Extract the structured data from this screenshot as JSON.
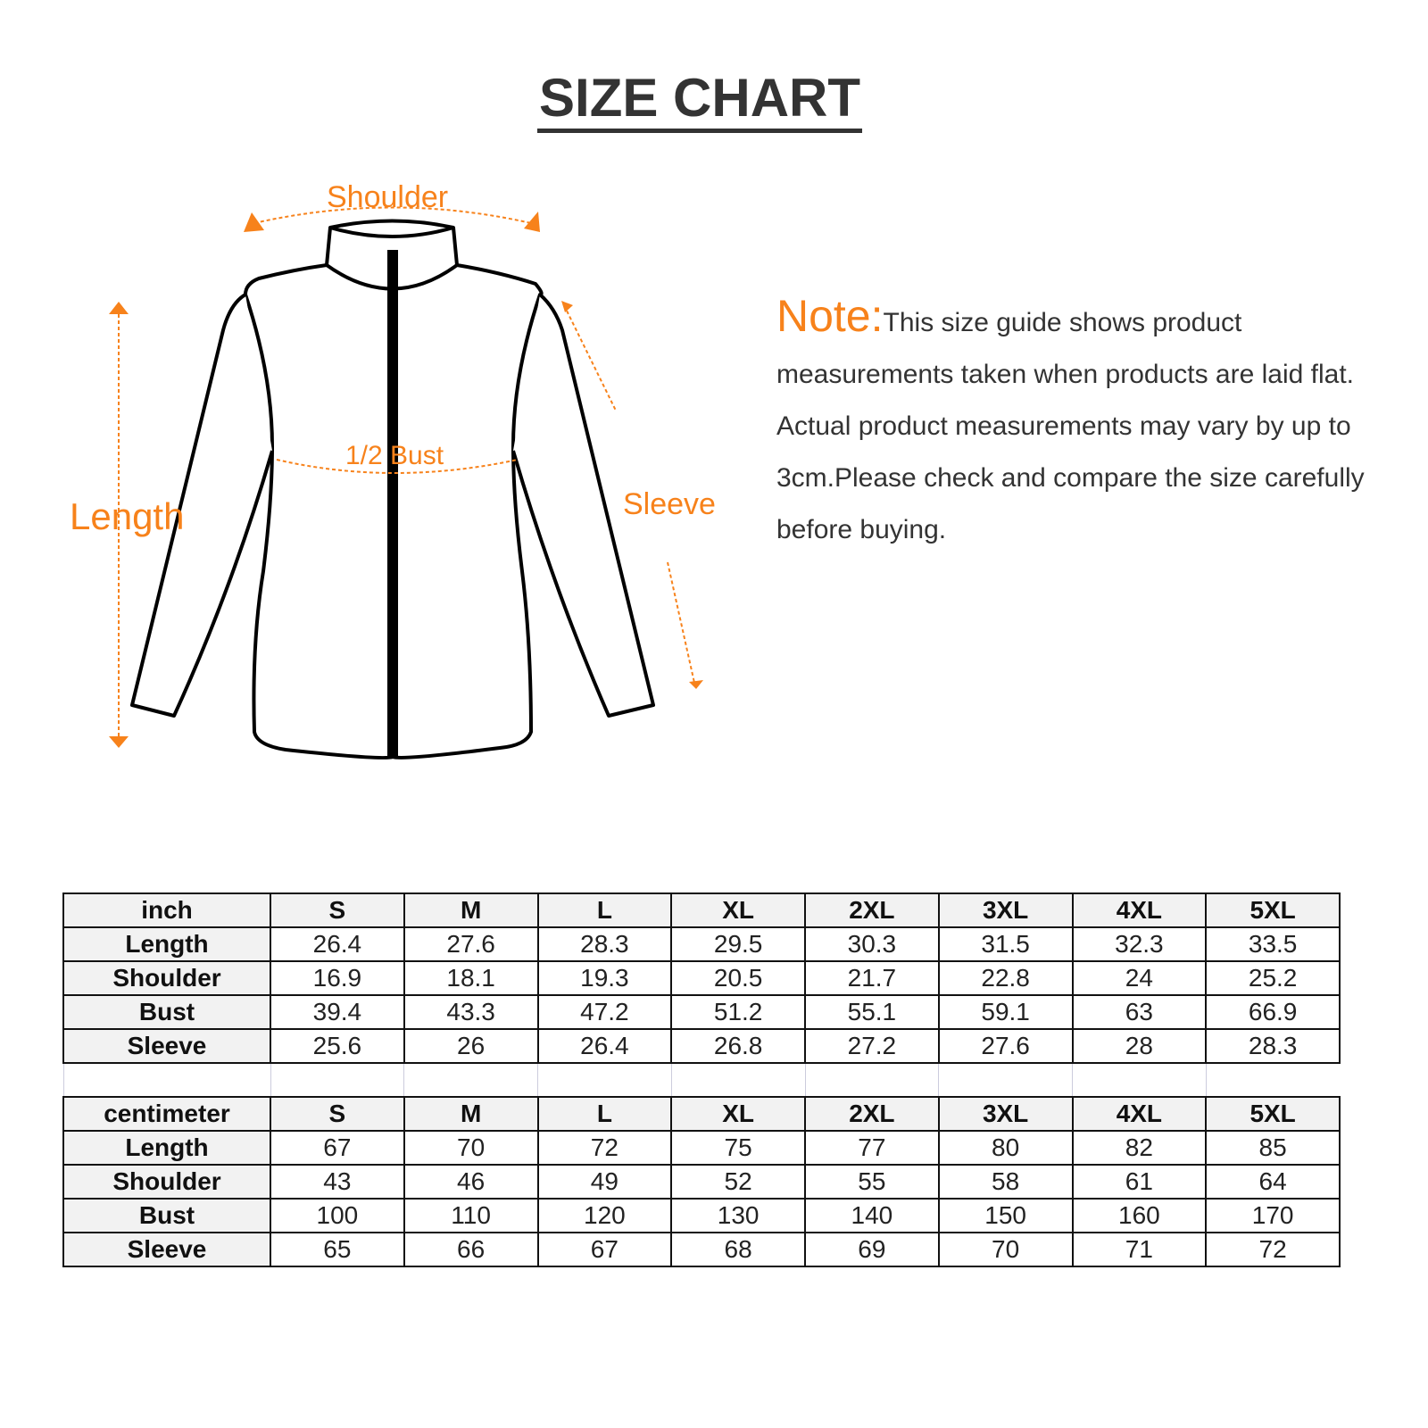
{
  "title": "SIZE CHART",
  "diagram": {
    "shoulder": "Shoulder",
    "bust": "1/2 Bust",
    "length": "Length",
    "sleeve": "Sleeve"
  },
  "note": {
    "heading": "Note:",
    "text": "This size guide shows product measurements taken when products are laid flat. Actual product measurements may vary by up to 3cm.Please check and compare the size carefully before buying."
  },
  "colors": {
    "accent": "#f7821b",
    "text": "#333333",
    "header_bg": "#f2f2f2"
  },
  "inch": {
    "unit": "inch",
    "sizes": [
      "S",
      "M",
      "L",
      "XL",
      "2XL",
      "3XL",
      "4XL",
      "5XL"
    ],
    "rows": [
      {
        "label": "Length",
        "values": [
          "26.4",
          "27.6",
          "28.3",
          "29.5",
          "30.3",
          "31.5",
          "32.3",
          "33.5"
        ]
      },
      {
        "label": "Shoulder",
        "values": [
          "16.9",
          "18.1",
          "19.3",
          "20.5",
          "21.7",
          "22.8",
          "24",
          "25.2"
        ]
      },
      {
        "label": "Bust",
        "values": [
          "39.4",
          "43.3",
          "47.2",
          "51.2",
          "55.1",
          "59.1",
          "63",
          "66.9"
        ]
      },
      {
        "label": "Sleeve",
        "values": [
          "25.6",
          "26",
          "26.4",
          "26.8",
          "27.2",
          "27.6",
          "28",
          "28.3"
        ]
      }
    ]
  },
  "cm": {
    "unit": "centimeter",
    "sizes": [
      "S",
      "M",
      "L",
      "XL",
      "2XL",
      "3XL",
      "4XL",
      "5XL"
    ],
    "rows": [
      {
        "label": "Length",
        "values": [
          "67",
          "70",
          "72",
          "75",
          "77",
          "80",
          "82",
          "85"
        ]
      },
      {
        "label": "Shoulder",
        "values": [
          "43",
          "46",
          "49",
          "52",
          "55",
          "58",
          "61",
          "64"
        ]
      },
      {
        "label": "Bust",
        "values": [
          "100",
          "110",
          "120",
          "130",
          "140",
          "150",
          "160",
          "170"
        ]
      },
      {
        "label": "Sleeve",
        "values": [
          "65",
          "66",
          "67",
          "68",
          "69",
          "70",
          "71",
          "72"
        ]
      }
    ]
  }
}
